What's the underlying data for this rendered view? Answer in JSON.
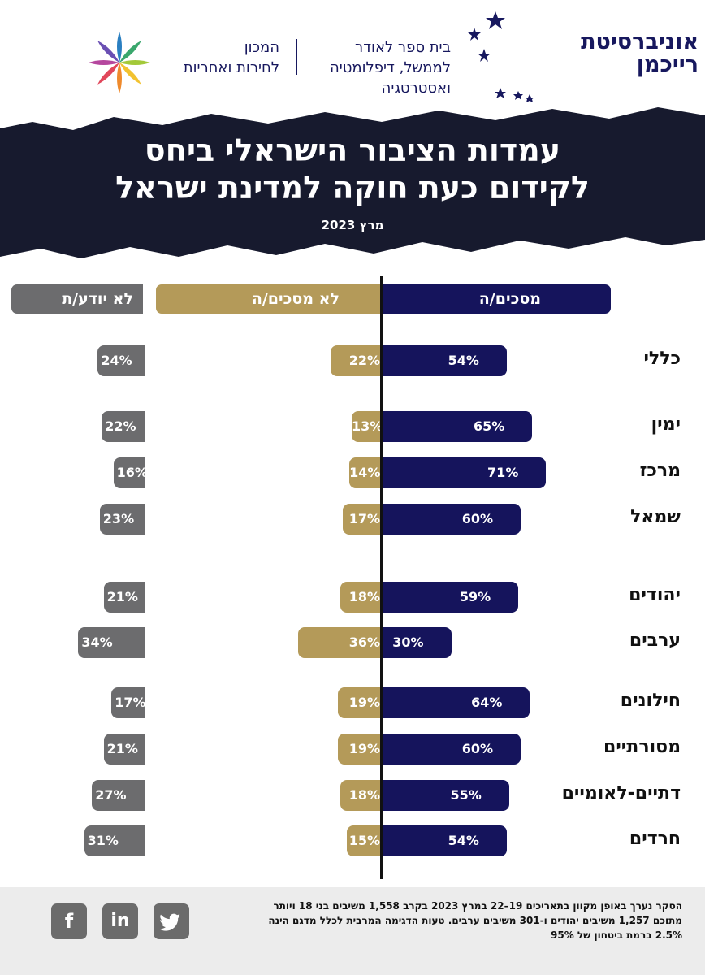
{
  "header": {
    "university_name": [
      "אוניברסיטת",
      "רייכמן"
    ],
    "school_name": [
      "בית ספר לאודר",
      "לממשל, דיפלומטיה",
      "ואסטרטגיה"
    ],
    "institute_name": [
      "המכון",
      "לחירות ואחריות"
    ]
  },
  "title_lines": [
    "עמדות הציבור הישראלי ביחס",
    "לקידום כעת חוקה למדינת ישראל"
  ],
  "date": "מרץ 2023",
  "colors": {
    "agree": "#15145c",
    "disagree": "#b49a59",
    "dont_know": "#6c6c6e",
    "banner": "#171a2e"
  },
  "chart_data": {
    "type": "bar",
    "orientation": "horizontal-diverging",
    "title": "עמדות הציבור הישראלי ביחס לקידום כעת חוקה למדינת ישראל",
    "unit": "%",
    "categories": [
      "כללי",
      "ימין",
      "מרכז",
      "שמאל",
      "יהודים",
      "ערבים",
      "חילונים",
      "מסורתיים",
      "דתיים-לאומיים",
      "חרדים"
    ],
    "series": [
      {
        "name": "מסכים/ה",
        "values": [
          54,
          65,
          71,
          60,
          59,
          30,
          64,
          60,
          55,
          54
        ]
      },
      {
        "name": "לא מסכים/ה",
        "values": [
          22,
          13,
          14,
          17,
          18,
          36,
          19,
          19,
          18,
          15
        ]
      },
      {
        "name": "לא יודע/ת",
        "values": [
          24,
          22,
          16,
          23,
          21,
          34,
          17,
          21,
          27,
          31
        ]
      }
    ]
  },
  "footer": {
    "note_lines": [
      "הסקר נערך באופן מקוון בתאריכים 19–22 במרץ 2023 בקרב 1,558 משיבים בני 18 ויותר",
      "מתוכם 1,257 משיבים יהודים ו-301 משיבים ערבים. טעות הדגימה המרבית לכלל מדגם הינה",
      "2.5% ברמת ביטחון של 95%"
    ],
    "social": [
      "f",
      "in",
      "t"
    ]
  }
}
